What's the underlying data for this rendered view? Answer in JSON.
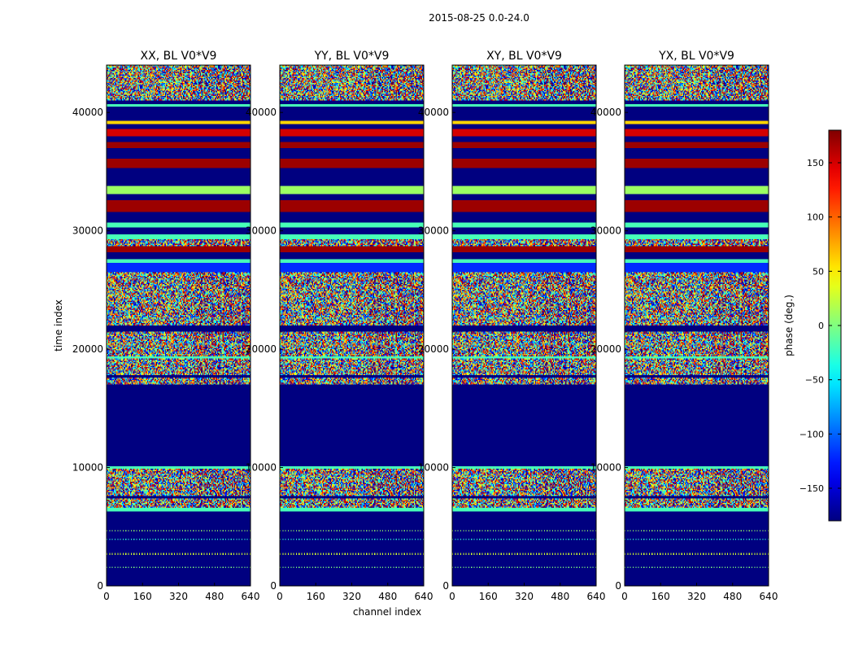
{
  "figure": {
    "suptitle": "2015-08-25 0.0-24.0",
    "xlabel": "channel index",
    "ylabel": "time index"
  },
  "chart_data": {
    "type": "heatmap",
    "colormap": "jet",
    "xlim": [
      0,
      640
    ],
    "ylim": [
      0,
      44000
    ],
    "x_ticks": [
      0,
      160,
      320,
      480,
      640
    ],
    "y_ticks": [
      0,
      10000,
      20000,
      30000,
      40000
    ],
    "panels": [
      {
        "title": "XX, BL V0*V9"
      },
      {
        "title": "YY, BL V0*V9"
      },
      {
        "title": "XY, BL V0*V9"
      },
      {
        "title": "YX, BL V0*V9"
      }
    ],
    "row_bands": [
      {
        "t0": 0,
        "t1": 6300,
        "pattern": "uniform",
        "phase": -180
      },
      {
        "t0": 1500,
        "t1": 1600,
        "pattern": "dotted",
        "phase": 0
      },
      {
        "t0": 2650,
        "t1": 2850,
        "pattern": "dotted",
        "phase": 30
      },
      {
        "t0": 3900,
        "t1": 4000,
        "pattern": "dotted",
        "phase": -30
      },
      {
        "t0": 4600,
        "t1": 4700,
        "pattern": "dotted",
        "phase": 10
      },
      {
        "t0": 6300,
        "t1": 6600,
        "pattern": "uniform",
        "phase": -20
      },
      {
        "t0": 6600,
        "t1": 9900,
        "pattern": "noise"
      },
      {
        "t0": 7450,
        "t1": 7600,
        "pattern": "uniform",
        "phase": -180
      },
      {
        "t0": 9900,
        "t1": 10100,
        "pattern": "uniform",
        "phase": -20
      },
      {
        "t0": 10100,
        "t1": 17000,
        "pattern": "uniform",
        "phase": -180
      },
      {
        "t0": 17000,
        "t1": 21500,
        "pattern": "noise"
      },
      {
        "t0": 17600,
        "t1": 17800,
        "pattern": "uniform",
        "phase": -180
      },
      {
        "t0": 19200,
        "t1": 19400,
        "pattern": "uniform",
        "phase": -20
      },
      {
        "t0": 21500,
        "t1": 22000,
        "pattern": "uniform",
        "phase": -180
      },
      {
        "t0": 22000,
        "t1": 26500,
        "pattern": "noise"
      },
      {
        "t0": 26500,
        "t1": 27300,
        "pattern": "uniform",
        "phase": -120
      },
      {
        "t0": 27300,
        "t1": 27600,
        "pattern": "uniform",
        "phase": -20
      },
      {
        "t0": 27600,
        "t1": 28200,
        "pattern": "uniform",
        "phase": -180
      },
      {
        "t0": 28200,
        "t1": 28700,
        "pattern": "uniform",
        "phase": 170
      },
      {
        "t0": 28700,
        "t1": 29300,
        "pattern": "noise"
      },
      {
        "t0": 29300,
        "t1": 29700,
        "pattern": "uniform",
        "phase": -20
      },
      {
        "t0": 29700,
        "t1": 30300,
        "pattern": "uniform",
        "phase": -180
      },
      {
        "t0": 30300,
        "t1": 30700,
        "pattern": "uniform",
        "phase": -20
      },
      {
        "t0": 30700,
        "t1": 31600,
        "pattern": "uniform",
        "phase": -180
      },
      {
        "t0": 31600,
        "t1": 32600,
        "pattern": "uniform",
        "phase": 170
      },
      {
        "t0": 32600,
        "t1": 33100,
        "pattern": "uniform",
        "phase": -180
      },
      {
        "t0": 33100,
        "t1": 33800,
        "pattern": "uniform",
        "phase": 10
      },
      {
        "t0": 33800,
        "t1": 35300,
        "pattern": "uniform",
        "phase": -180
      },
      {
        "t0": 35300,
        "t1": 36100,
        "pattern": "uniform",
        "phase": 170
      },
      {
        "t0": 36100,
        "t1": 37000,
        "pattern": "uniform",
        "phase": -180
      },
      {
        "t0": 37000,
        "t1": 37500,
        "pattern": "uniform",
        "phase": 170
      },
      {
        "t0": 37500,
        "t1": 38000,
        "pattern": "uniform",
        "phase": -180
      },
      {
        "t0": 38000,
        "t1": 38600,
        "pattern": "uniform",
        "phase": 150
      },
      {
        "t0": 38600,
        "t1": 39000,
        "pattern": "uniform",
        "phase": -180
      },
      {
        "t0": 39000,
        "t1": 39300,
        "pattern": "uniform",
        "phase": 60
      },
      {
        "t0": 39300,
        "t1": 40500,
        "pattern": "uniform",
        "phase": -180
      },
      {
        "t0": 40500,
        "t1": 40700,
        "pattern": "uniform",
        "phase": -20
      },
      {
        "t0": 40700,
        "t1": 41000,
        "pattern": "uniform",
        "phase": -180
      },
      {
        "t0": 41000,
        "t1": 44000,
        "pattern": "noise"
      }
    ],
    "colorbar": {
      "label": "phase (deg.)",
      "range": [
        -180,
        180
      ],
      "ticks": [
        -150,
        -100,
        -50,
        0,
        50,
        100,
        150
      ],
      "tick_labels": [
        "−150",
        "−100",
        "−50",
        "0",
        "50",
        "100",
        "150"
      ]
    }
  }
}
